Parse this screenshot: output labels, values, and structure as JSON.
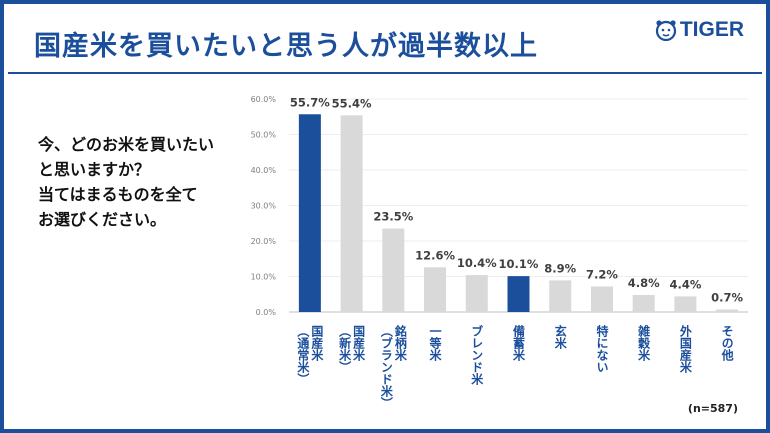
{
  "header": {
    "title": "国産米を買いたいと思う人が過半数以上",
    "logo_text": "TIGER"
  },
  "question": {
    "lines": [
      "今、どのお米を買いたい",
      "と思いますか？",
      "当てはまるものを全て",
      "お選びください。"
    ]
  },
  "note": "(n=587)",
  "colors": {
    "highlight": "#1b4f9c",
    "bar": "#d9d9d9",
    "label": "#404040",
    "tick": "#808080",
    "category": "#1b4f9c"
  },
  "chart_data": {
    "type": "bar",
    "title": "",
    "xlabel": "",
    "ylabel": "",
    "ylim": [
      0,
      60
    ],
    "yticks": [
      0,
      10,
      20,
      30,
      40,
      50,
      60
    ],
    "ytick_labels": [
      "0.0%",
      "10.0%",
      "20.0%",
      "30.0%",
      "40.0%",
      "50.0%",
      "60.0%"
    ],
    "categories": [
      {
        "main": "国産米",
        "sub": "（通常米）"
      },
      {
        "main": "国産米",
        "sub": "（新米）"
      },
      {
        "main": "銘柄米",
        "sub": "（ブランド米）"
      },
      {
        "main": "一等米",
        "sub": ""
      },
      {
        "main": "ブレンド米",
        "sub": ""
      },
      {
        "main": "備蓄米",
        "sub": ""
      },
      {
        "main": "玄米",
        "sub": ""
      },
      {
        "main": "特にない",
        "sub": ""
      },
      {
        "main": "雑穀米",
        "sub": ""
      },
      {
        "main": "外国産米",
        "sub": ""
      },
      {
        "main": "その他",
        "sub": ""
      }
    ],
    "values": [
      55.7,
      55.4,
      23.5,
      12.6,
      10.4,
      10.1,
      8.9,
      7.2,
      4.8,
      4.4,
      0.7
    ],
    "value_labels": [
      "55.7%",
      "55.4%",
      "23.5%",
      "12.6%",
      "10.4%",
      "10.1%",
      "8.9%",
      "7.2%",
      "4.8%",
      "4.4%",
      "0.7%"
    ],
    "highlighted": [
      true,
      false,
      false,
      false,
      false,
      true,
      false,
      false,
      false,
      false,
      false
    ]
  }
}
